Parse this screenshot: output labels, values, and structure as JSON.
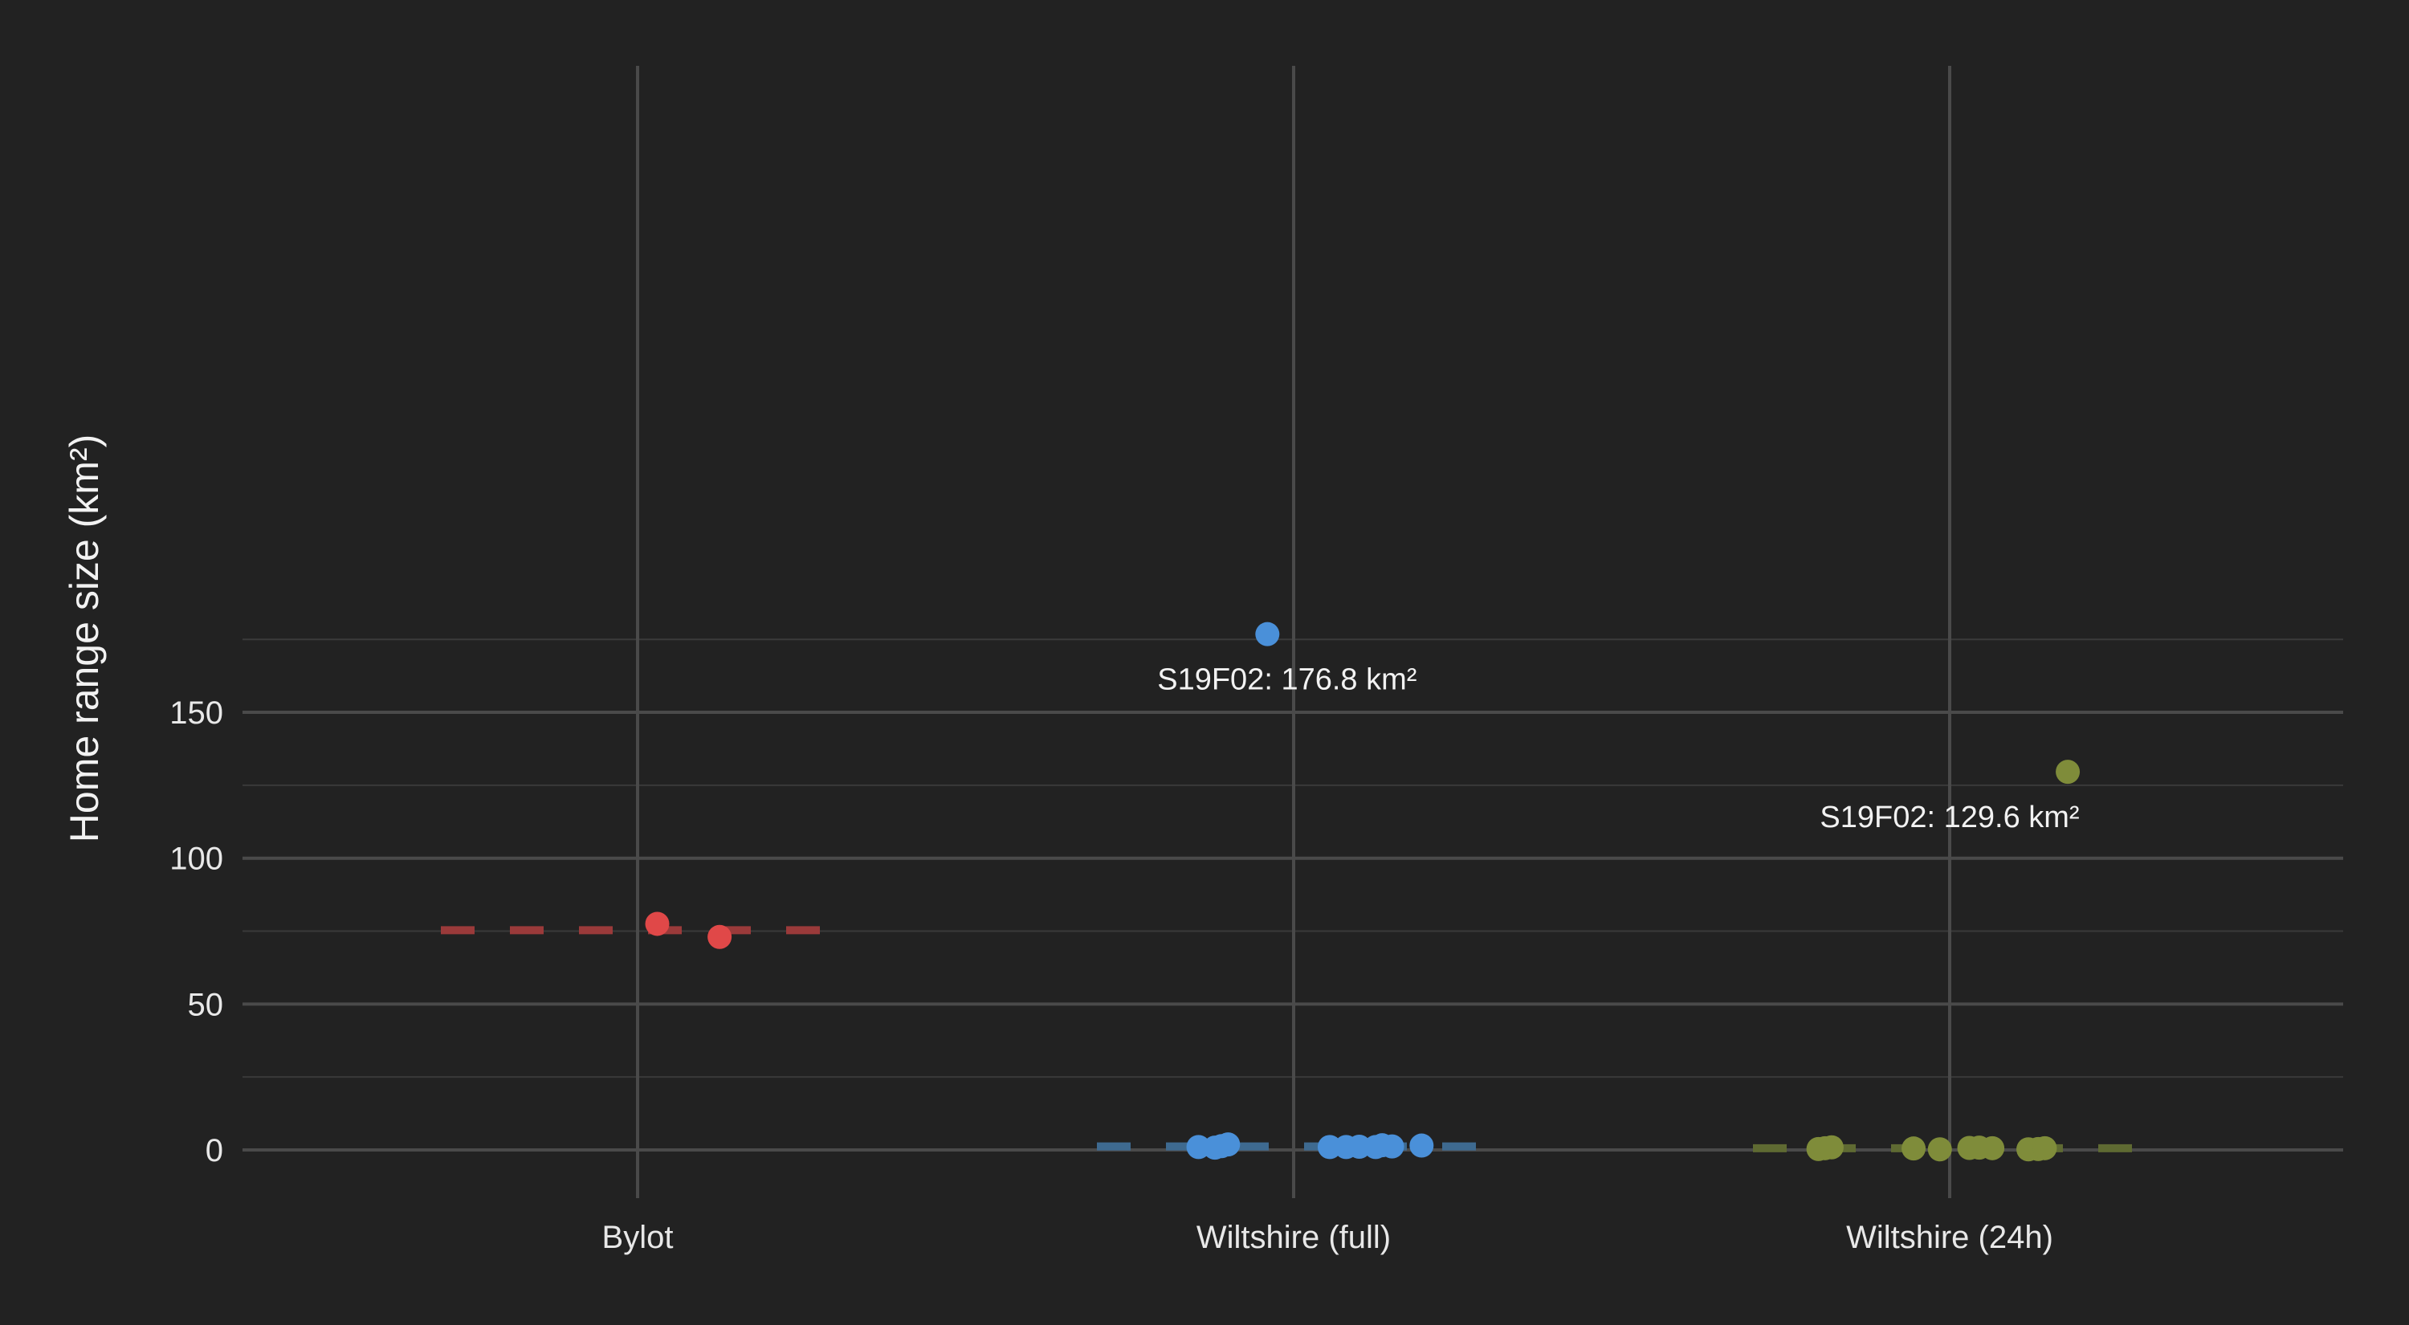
{
  "chart_data": {
    "type": "scatter",
    "title": "",
    "xlabel": "",
    "ylabel": "Home range size (km²)",
    "ylim": [
      -7,
      183
    ],
    "y_ticks": [
      0,
      50,
      100,
      150
    ],
    "y_tick_labels": [
      "0",
      "50",
      "100",
      "150"
    ],
    "grid": true,
    "legend": "none",
    "categories": [
      "Bylot",
      "Wiltshire (full)",
      "Wiltshire (24h)"
    ],
    "series": [
      {
        "category": "Bylot",
        "color": "#e04848",
        "mean_line_color": "#9a3a3a",
        "mean": 75.3,
        "points": [
          {
            "x_offset": 0.03,
            "y": 77.5
          },
          {
            "x_offset": 0.125,
            "y": 73.0
          }
        ]
      },
      {
        "category": "Wiltshire (full)",
        "color": "#4a90d9",
        "mean_line_color": "#3e6a90",
        "mean": 1.2,
        "points": [
          {
            "x_offset": -0.04,
            "y": 176.8
          },
          {
            "x_offset": -0.145,
            "y": 1.0
          },
          {
            "x_offset": -0.12,
            "y": 0.8
          },
          {
            "x_offset": -0.11,
            "y": 1.3
          },
          {
            "x_offset": -0.1,
            "y": 1.9
          },
          {
            "x_offset": 0.055,
            "y": 1.0
          },
          {
            "x_offset": 0.08,
            "y": 1.0
          },
          {
            "x_offset": 0.1,
            "y": 1.1
          },
          {
            "x_offset": 0.125,
            "y": 1.0
          },
          {
            "x_offset": 0.135,
            "y": 1.6
          },
          {
            "x_offset": 0.15,
            "y": 1.2
          },
          {
            "x_offset": 0.195,
            "y": 1.5
          }
        ]
      },
      {
        "category": "Wiltshire (24h)",
        "color": "#7f8c3a",
        "mean_line_color": "#5f6a32",
        "mean": 0.6,
        "points": [
          {
            "x_offset": 0.18,
            "y": 129.6
          },
          {
            "x_offset": -0.2,
            "y": 0.3
          },
          {
            "x_offset": -0.19,
            "y": 0.6
          },
          {
            "x_offset": -0.18,
            "y": 0.9
          },
          {
            "x_offset": -0.055,
            "y": 0.5
          },
          {
            "x_offset": -0.015,
            "y": 0.2
          },
          {
            "x_offset": 0.03,
            "y": 0.7
          },
          {
            "x_offset": 0.045,
            "y": 0.8
          },
          {
            "x_offset": 0.065,
            "y": 0.6
          },
          {
            "x_offset": 0.12,
            "y": 0.2
          },
          {
            "x_offset": 0.135,
            "y": 0.3
          },
          {
            "x_offset": 0.145,
            "y": 0.6
          }
        ]
      }
    ],
    "annotations": [
      {
        "category": "Wiltshire (full)",
        "x_offset": -0.01,
        "y": 176.8,
        "text": "S19F02: 176.8 km²"
      },
      {
        "category": "Wiltshire (24h)",
        "x_offset": 0.0,
        "y": 129.6,
        "text": "S19F02: 129.6 km²"
      }
    ]
  },
  "colors": {
    "background": "#222222",
    "grid_major": "#4a4a4a",
    "grid_minor": "#3a3a3a",
    "text": "#e8e8e8"
  }
}
